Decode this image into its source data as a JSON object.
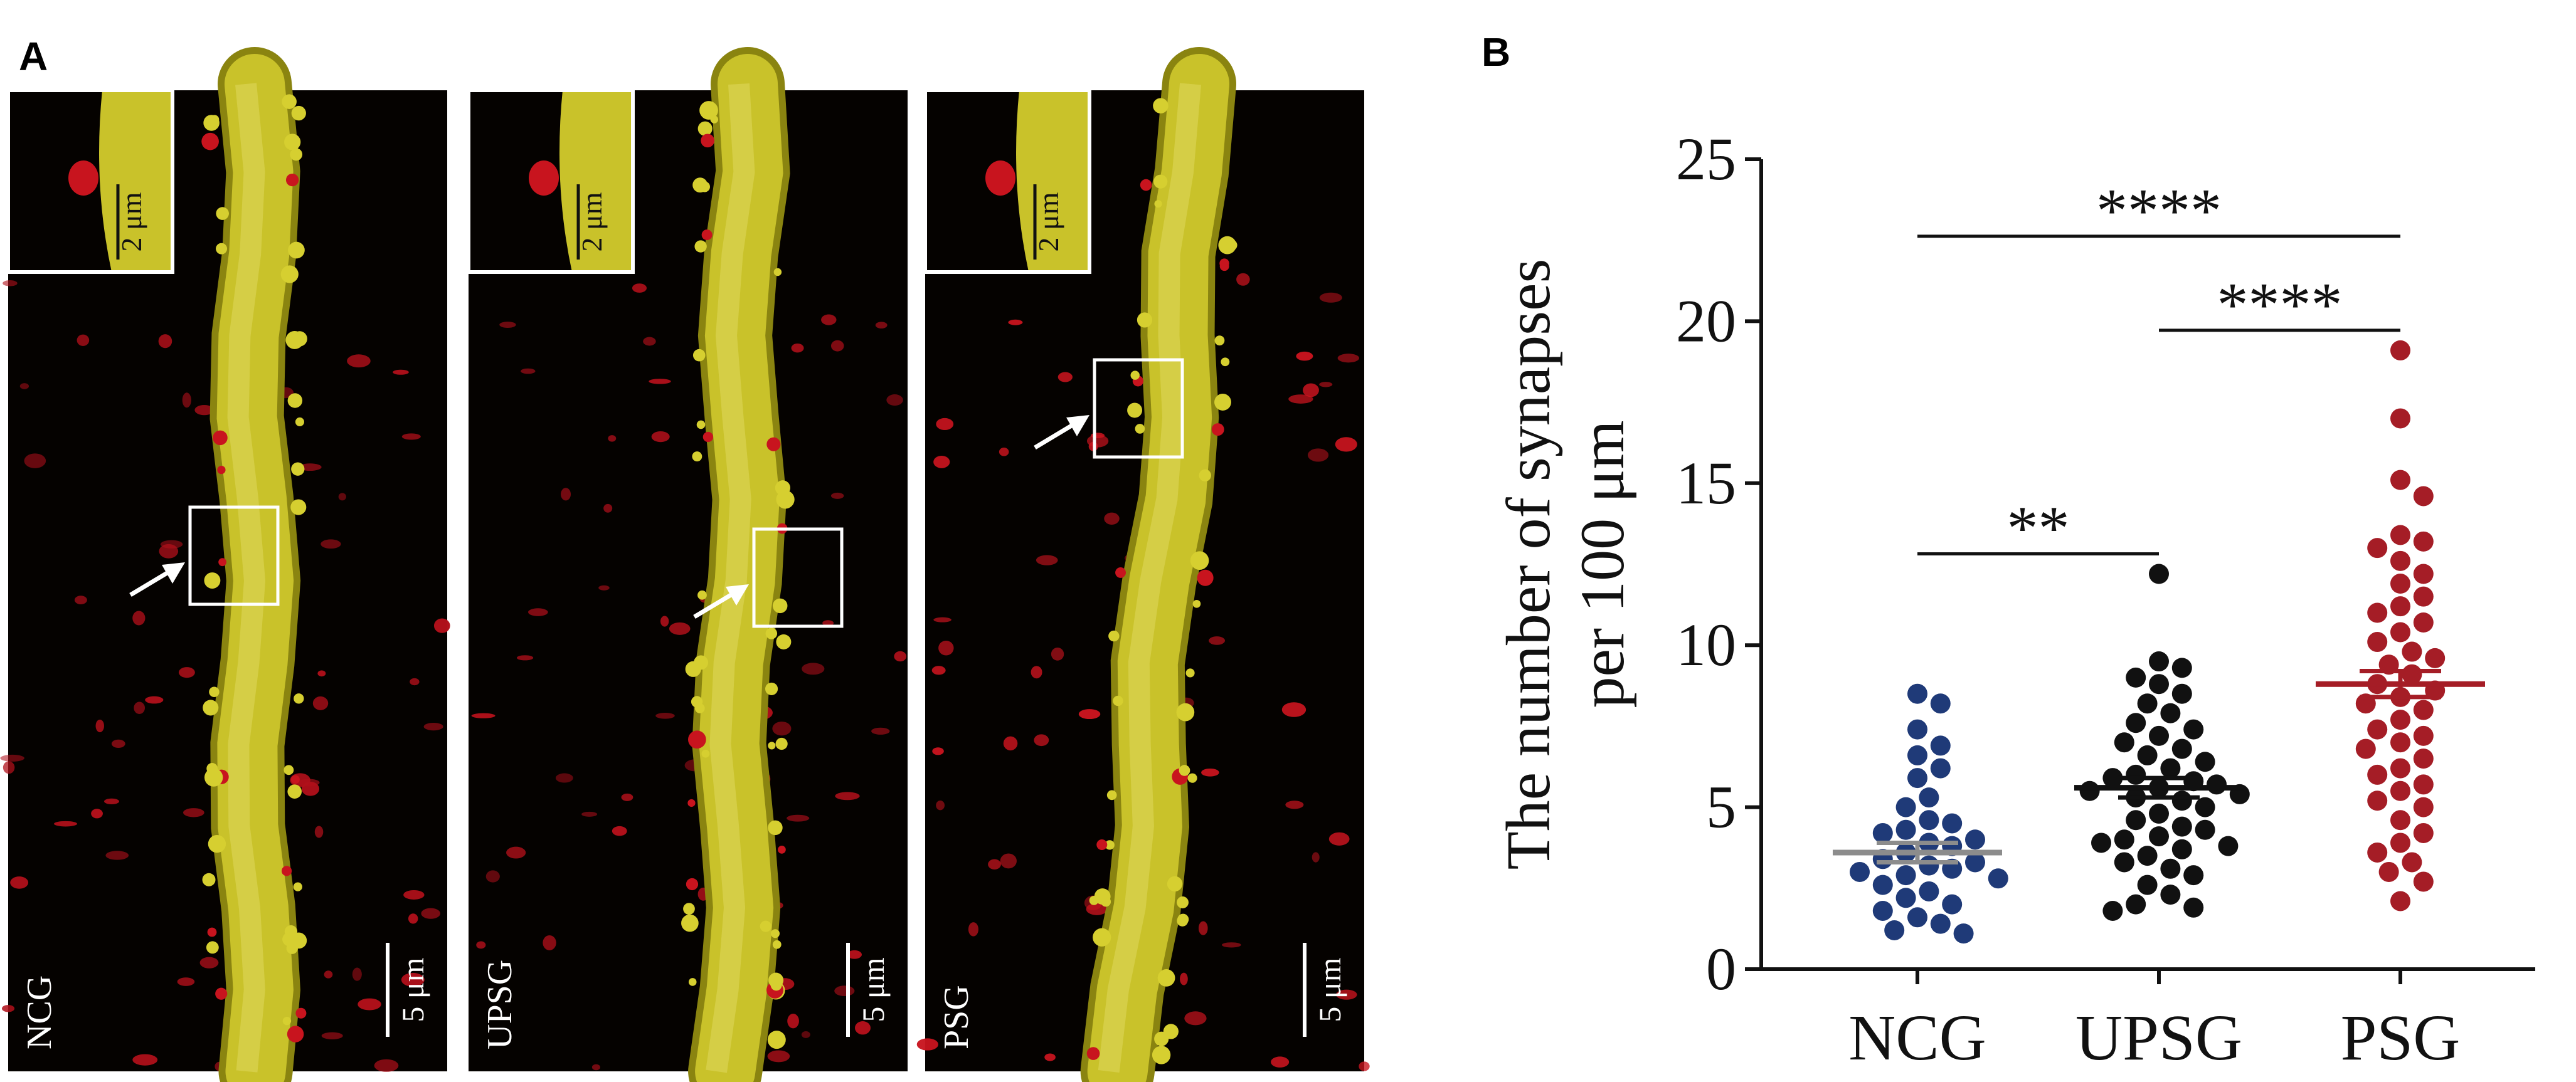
{
  "panel_a": {
    "label": "A",
    "images": [
      {
        "group": "NCG",
        "inset_scale": "2 μm",
        "scale": "5 μm"
      },
      {
        "group": "UPSG",
        "inset_scale": "2 μm",
        "scale": "5 μm"
      },
      {
        "group": "PSG",
        "inset_scale": "2 μm",
        "scale": "5 μm"
      }
    ]
  },
  "chart_data": {
    "type": "dot",
    "label": "B",
    "y_label": [
      "The number of synapses",
      "per 100 μm"
    ],
    "categories": [
      "NCG",
      "UPSG",
      "PSG"
    ],
    "colors": [
      "#1f3a78",
      "#111111",
      "#a51d26"
    ],
    "mean_colors": [
      "#8c8c8c",
      "#111111",
      "#a51d26"
    ],
    "points": [
      [
        8.5,
        8.2,
        7.4,
        6.9,
        6.6,
        6.2,
        5.9,
        5.3,
        5.0,
        4.6,
        4.5,
        4.3,
        4.2,
        4.0,
        3.9,
        3.8,
        3.6,
        3.4,
        3.3,
        3.2,
        3.1,
        3.0,
        2.9,
        2.8,
        2.6,
        2.4,
        2.2,
        2.0,
        1.8,
        1.6,
        1.4,
        1.2,
        1.1
      ],
      [
        12.2,
        9.5,
        9.3,
        9.0,
        8.8,
        8.5,
        8.2,
        7.9,
        7.6,
        7.4,
        7.2,
        7.0,
        6.8,
        6.6,
        6.4,
        6.2,
        6.0,
        5.9,
        5.8,
        5.7,
        5.6,
        5.5,
        5.4,
        5.3,
        5.2,
        5.0,
        4.8,
        4.6,
        4.4,
        4.3,
        4.1,
        4.0,
        3.9,
        3.8,
        3.7,
        3.5,
        3.3,
        3.1,
        2.9,
        2.6,
        2.3,
        2.0,
        1.9,
        1.8
      ],
      [
        19.1,
        17.0,
        15.1,
        14.6,
        13.4,
        13.2,
        13.0,
        12.6,
        12.2,
        11.9,
        11.5,
        11.2,
        11.0,
        10.7,
        10.4,
        10.1,
        9.8,
        9.6,
        9.4,
        9.1,
        8.8,
        8.6,
        8.4,
        8.2,
        8.0,
        7.7,
        7.4,
        7.2,
        7.0,
        6.8,
        6.5,
        6.2,
        6.0,
        5.7,
        5.5,
        5.2,
        5.0,
        4.6,
        4.2,
        3.9,
        3.6,
        3.3,
        3.0,
        2.7,
        2.1
      ]
    ],
    "means": [
      3.6,
      5.6,
      8.8
    ],
    "sems": [
      0.3,
      0.3,
      0.4
    ],
    "comparisons": [
      {
        "pair": [
          0,
          1
        ],
        "label": "**"
      },
      {
        "pair": [
          1,
          2
        ],
        "label": "****"
      },
      {
        "pair": [
          0,
          2
        ],
        "label": "****"
      }
    ],
    "ylim": [
      0,
      25
    ],
    "yticks": [
      0,
      5,
      10,
      15,
      20,
      25
    ]
  }
}
